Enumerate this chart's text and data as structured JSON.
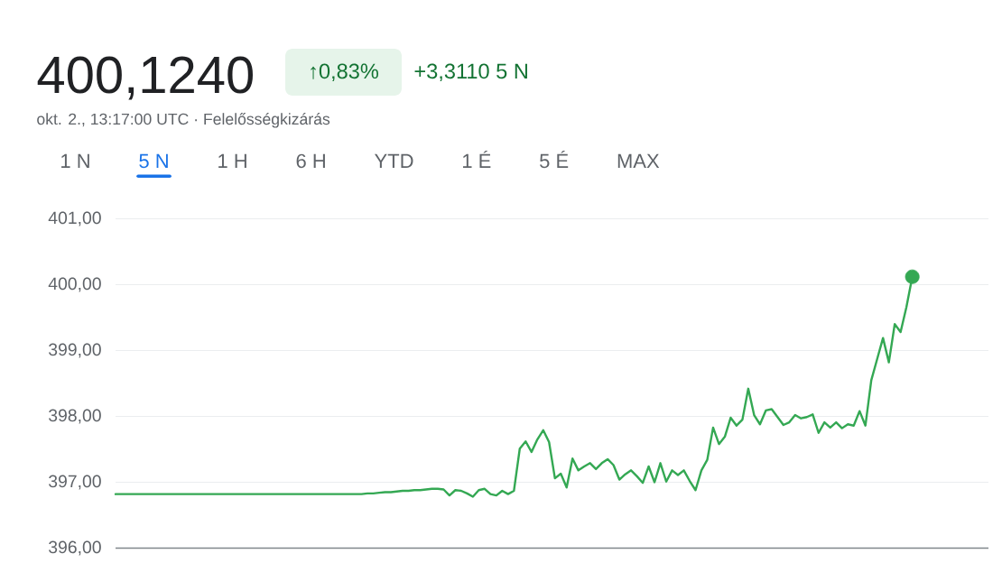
{
  "chart_data": {
    "type": "line",
    "title": "400,1240",
    "subtitle": "okt. 2., 13:17:00 UTC · Felelősségkizárás",
    "annotations": [
      "↑0,83%",
      "+3,3110 5 N",
      "1 N",
      "5 N",
      "1 H",
      "6 H",
      "YTD",
      "1 É",
      "5 É",
      "MAX"
    ],
    "categories": [
      null,
      null,
      null,
      null,
      null,
      null,
      null,
      null,
      null,
      null,
      null,
      null,
      null,
      null,
      null,
      null,
      null,
      null,
      null,
      null,
      null,
      null,
      null,
      null,
      null,
      null,
      null,
      null,
      null,
      null,
      null,
      null,
      null,
      null,
      null,
      null,
      null,
      null,
      null,
      null,
      null,
      null,
      null,
      null,
      null,
      null,
      null,
      null,
      null,
      null,
      null,
      null,
      null,
      null,
      null,
      null,
      null,
      null,
      null,
      null,
      null,
      null,
      null,
      null,
      null,
      null,
      null,
      null,
      null,
      null,
      null,
      null,
      null,
      null,
      null,
      null,
      null,
      null,
      null,
      null,
      null,
      null,
      null,
      null,
      null,
      null,
      null,
      null,
      null,
      null,
      null,
      null,
      null,
      null,
      null,
      null,
      null,
      null,
      null,
      null,
      null,
      null,
      null,
      null,
      null,
      null,
      null,
      null,
      null,
      null,
      null,
      null,
      null,
      null,
      null,
      null,
      null,
      null,
      null,
      null,
      null,
      null,
      null,
      null,
      null,
      null,
      null,
      null,
      null,
      null,
      null,
      null,
      null,
      null,
      null,
      null,
      null,
      null,
      null,
      null,
      null,
      null,
      null,
      null,
      null,
      null,
      null,
      null,
      null,
      null
    ],
    "series": [
      {
        "color": "#34a853",
        "values": [
          396.82,
          396.82,
          396.82,
          396.82,
          396.82,
          396.82,
          396.82,
          396.82,
          396.82,
          396.82,
          396.82,
          396.82,
          396.82,
          396.82,
          396.82,
          396.82,
          396.82,
          396.82,
          396.82,
          396.82,
          396.82,
          396.82,
          396.82,
          396.82,
          396.82,
          396.82,
          396.82,
          396.82,
          396.82,
          396.82,
          396.82,
          396.82,
          396.82,
          396.82,
          396.82,
          396.82,
          396.82,
          396.82,
          396.82,
          396.82,
          396.82,
          396.82,
          396.82,
          396.83,
          396.83,
          396.84,
          396.85,
          396.85,
          396.86,
          396.87,
          396.87,
          396.88,
          396.88,
          396.89,
          396.9,
          396.9,
          396.89,
          396.8,
          396.88,
          396.87,
          396.83,
          396.78,
          396.88,
          396.9,
          396.82,
          396.8,
          396.87,
          396.82,
          396.87,
          397.51,
          397.62,
          397.46,
          397.65,
          397.79,
          397.61,
          397.06,
          397.13,
          396.92,
          397.36,
          397.18,
          397.24,
          397.29,
          397.2,
          397.29,
          397.35,
          397.26,
          397.04,
          397.12,
          397.18,
          397.09,
          396.99,
          397.24,
          397.0,
          397.29,
          397.01,
          397.18,
          397.11,
          397.18,
          397.02,
          396.88,
          397.18,
          397.34,
          397.83,
          397.58,
          397.69,
          397.98,
          397.86,
          397.95,
          398.42,
          398.02,
          397.88,
          398.09,
          398.11,
          397.99,
          397.87,
          397.91,
          398.02,
          397.97,
          397.99,
          398.03,
          397.75,
          397.91,
          397.83,
          397.91,
          397.82,
          397.88,
          397.86,
          398.08,
          397.86,
          398.55,
          398.87,
          399.19,
          398.82,
          399.4,
          399.28,
          399.66,
          400.12,
          null,
          null,
          null,
          null,
          null,
          null,
          null,
          null,
          null,
          null,
          null,
          null,
          null
        ]
      },
      {
        "type": "scatter",
        "color": "#34a853",
        "marker": "circle",
        "values": [
          null,
          null,
          null,
          null,
          null,
          null,
          null,
          null,
          null,
          null,
          null,
          null,
          null,
          null,
          null,
          null,
          null,
          null,
          null,
          null,
          null,
          null,
          null,
          null,
          null,
          null,
          null,
          null,
          null,
          null,
          null,
          null,
          null,
          null,
          null,
          null,
          null,
          null,
          null,
          null,
          null,
          null,
          null,
          null,
          null,
          null,
          null,
          null,
          null,
          null,
          null,
          null,
          null,
          null,
          null,
          null,
          null,
          null,
          null,
          null,
          null,
          null,
          null,
          null,
          null,
          null,
          null,
          null,
          null,
          null,
          null,
          null,
          null,
          null,
          null,
          null,
          null,
          null,
          null,
          null,
          null,
          null,
          null,
          null,
          null,
          null,
          null,
          null,
          null,
          null,
          null,
          null,
          null,
          null,
          null,
          null,
          null,
          null,
          null,
          null,
          null,
          null,
          null,
          null,
          null,
          null,
          null,
          null,
          null,
          null,
          null,
          null,
          null,
          null,
          null,
          null,
          null,
          null,
          null,
          null,
          null,
          null,
          null,
          null,
          null,
          null,
          null,
          null,
          null,
          null,
          null,
          null,
          null,
          null,
          null,
          null,
          400.12,
          null,
          null,
          null,
          null,
          null,
          null,
          null,
          null,
          null,
          null,
          null,
          null,
          null
        ]
      }
    ],
    "ylim": [
      396,
      401
    ],
    "yticks": [
      {
        "value": 396,
        "label": "396,00"
      },
      {
        "value": 397,
        "label": "397,00"
      },
      {
        "value": 398,
        "label": "398,00"
      },
      {
        "value": 399,
        "label": "399,00"
      },
      {
        "value": 400,
        "label": "400,00"
      },
      {
        "value": 401,
        "label": "401,00"
      }
    ],
    "grid": "y"
  }
}
